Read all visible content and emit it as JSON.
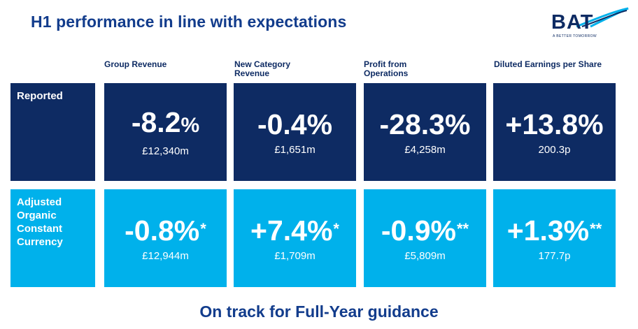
{
  "title": "H1 performance in line with expectations",
  "logo": {
    "text": "BAT",
    "tagline": "A BETTER TOMORROW"
  },
  "columns": [
    "Group Revenue",
    "New Category Revenue",
    "Profit from Operations",
    "Diluted Earnings per Share"
  ],
  "rows": [
    {
      "label": "Reported",
      "cells": [
        {
          "value": "-8.2",
          "unit": "%",
          "mark": "",
          "sub": "£12,340m"
        },
        {
          "value": "-0.4%",
          "unit": "",
          "mark": "",
          "sub": "£1,651m"
        },
        {
          "value": "-28.3%",
          "unit": "",
          "mark": "",
          "sub": "£4,258m"
        },
        {
          "value": "+13.8%",
          "unit": "",
          "mark": "",
          "sub": "200.3p"
        }
      ]
    },
    {
      "label": "Adjusted Organic Constant Currency",
      "cells": [
        {
          "value": "-0.8%",
          "unit": "",
          "mark": "*",
          "sub": "£12,944m"
        },
        {
          "value": "+7.4%",
          "unit": "",
          "mark": "*",
          "sub": "£1,709m"
        },
        {
          "value": "-0.9%",
          "unit": "",
          "mark": "**",
          "sub": "£5,809m"
        },
        {
          "value": "+1.3%",
          "unit": "",
          "mark": "**",
          "sub": "177.7p"
        }
      ]
    }
  ],
  "footer": "On track for Full-Year guidance",
  "colors": {
    "dark": "#0e2b63",
    "light": "#00b1eb",
    "title": "#123c8c"
  }
}
